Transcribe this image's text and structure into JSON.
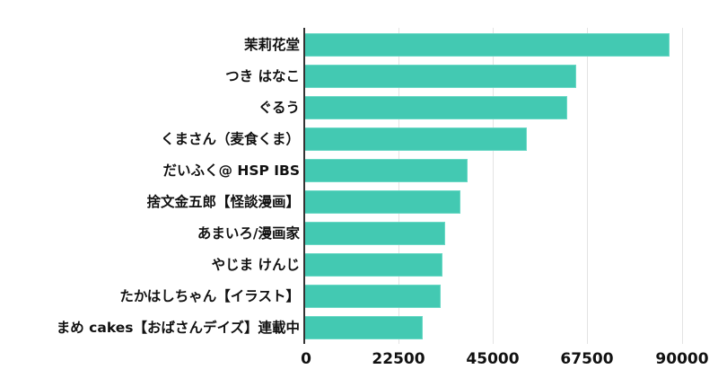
{
  "chart_data": {
    "type": "bar",
    "orientation": "horizontal",
    "title": "",
    "xlabel": "",
    "ylabel": "",
    "categories": [
      "茉莉花堂",
      "つき はなこ",
      "ぐるう",
      "くまさん（麦食くま）",
      "だいふく@ HSP IBS",
      "捨文金五郎【怪談漫画】",
      "あまいろ/漫画家",
      "やじま けんじ",
      "たかはしちゃん【イラスト】",
      "まめ cakes【おばさんデイズ】連載中"
    ],
    "values": [
      87200,
      64900,
      62700,
      53200,
      39000,
      37400,
      33700,
      33100,
      32600,
      28300
    ],
    "xlim": [
      0,
      90000
    ],
    "xticks": [
      "0",
      "22500",
      "45000",
      "67500",
      "90000"
    ],
    "grid": true,
    "legend": null,
    "bar_color": "#43c9b2"
  }
}
